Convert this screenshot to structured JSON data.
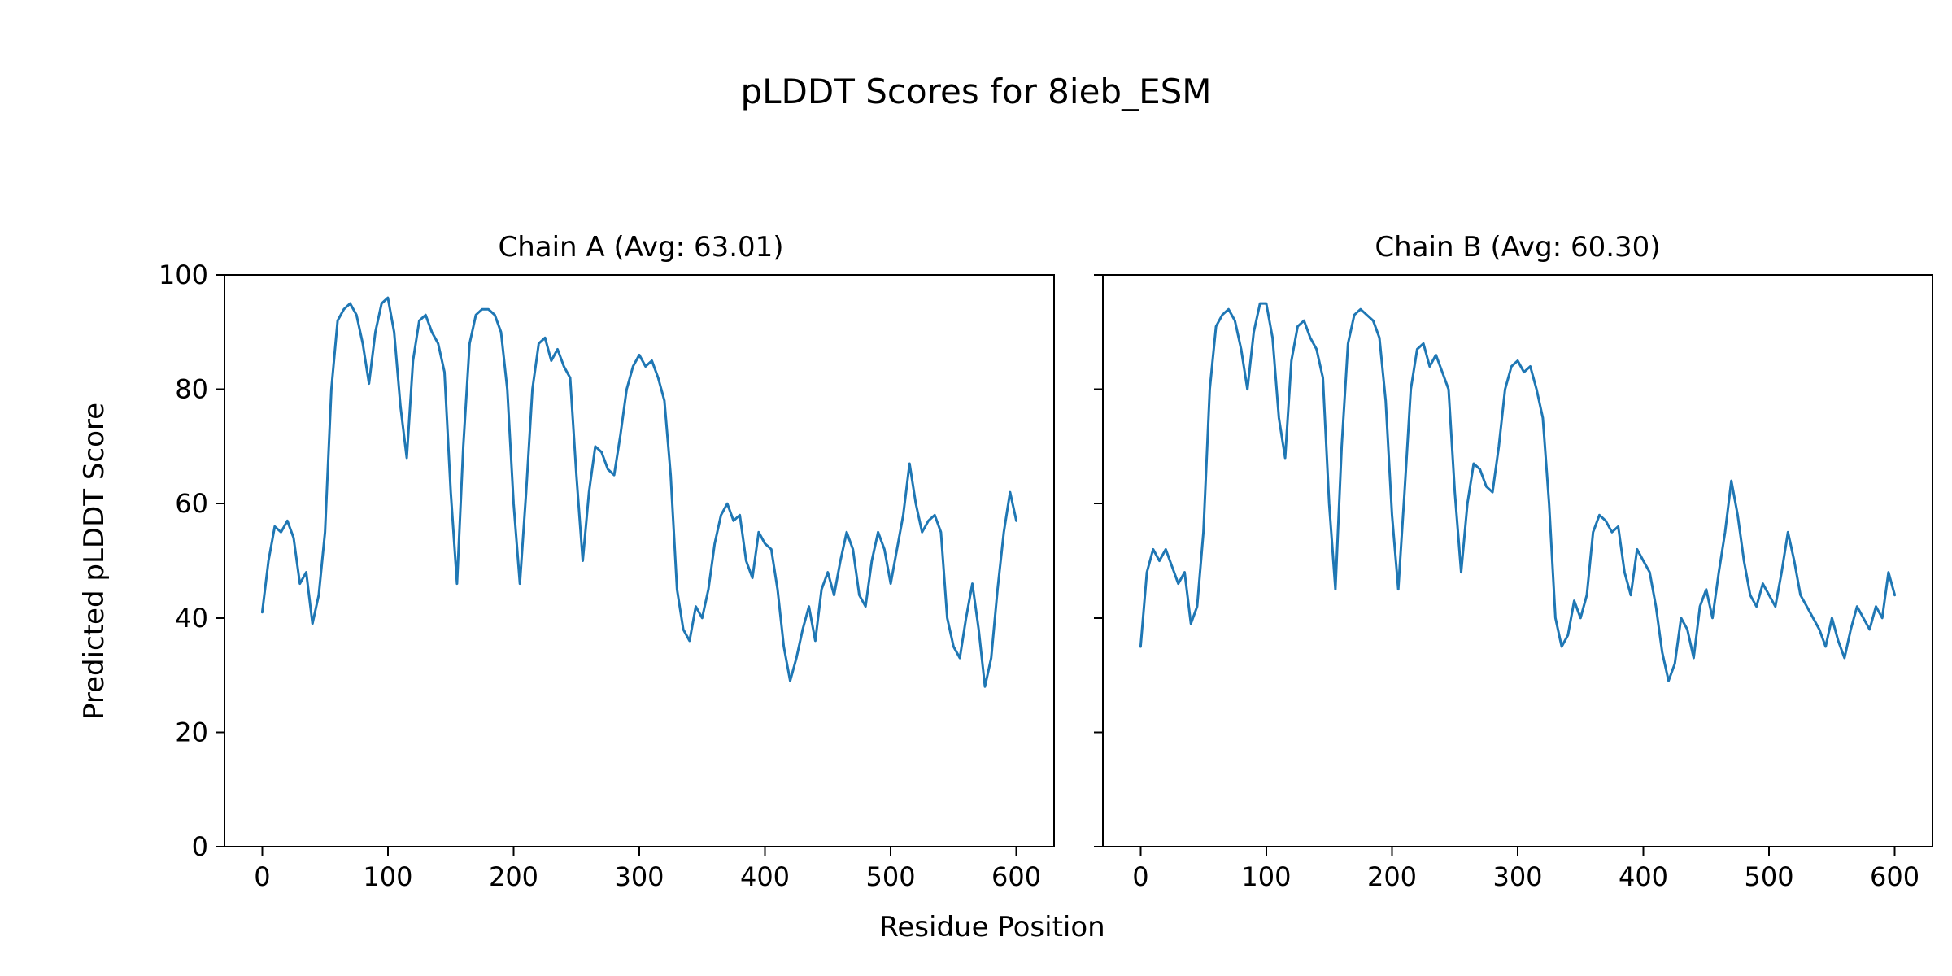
{
  "figure": {
    "title": "pLDDT Scores for 8ieb_ESM",
    "xlabel": "Residue Position",
    "ylabel": "Predicted pLDDT Score"
  },
  "chart_data": {
    "type": "line",
    "title": "pLDDT Scores for 8ieb_ESM",
    "xlabel": "Residue Position",
    "ylabel": "Predicted pLDDT Score",
    "line_color": "#1f77b4",
    "background_color": "#ffffff",
    "grid": false,
    "legend": "none",
    "subplots": [
      {
        "title": "Chain A (Avg: 63.01)",
        "avg": 63.01,
        "xlim": [
          -30,
          630
        ],
        "ylim": [
          0,
          100
        ],
        "xticks": [
          0,
          100,
          200,
          300,
          400,
          500,
          600
        ],
        "yticks": [
          0,
          20,
          40,
          60,
          80,
          100
        ],
        "show_ytick_labels": true,
        "x_start": 0,
        "x_step": 5,
        "values": [
          41,
          50,
          56,
          55,
          57,
          54,
          46,
          48,
          39,
          44,
          55,
          80,
          92,
          94,
          95,
          93,
          88,
          81,
          90,
          95,
          96,
          90,
          77,
          68,
          85,
          92,
          93,
          90,
          88,
          83,
          62,
          46,
          70,
          88,
          93,
          94,
          94,
          93,
          90,
          80,
          60,
          46,
          62,
          80,
          88,
          89,
          85,
          87,
          84,
          82,
          65,
          50,
          62,
          70,
          69,
          66,
          65,
          72,
          80,
          84,
          86,
          84,
          85,
          82,
          78,
          65,
          45,
          38,
          36,
          42,
          40,
          45,
          53,
          58,
          60,
          57,
          58,
          50,
          47,
          55,
          53,
          52,
          45,
          35,
          29,
          33,
          38,
          42,
          36,
          45,
          48,
          44,
          50,
          55,
          52,
          44,
          42,
          50,
          55,
          52,
          46,
          52,
          58,
          67,
          60,
          55,
          57,
          58,
          55,
          40,
          35,
          33,
          40,
          46,
          38,
          28,
          33,
          45,
          55,
          62,
          57
        ]
      },
      {
        "title": "Chain B (Avg: 60.30)",
        "avg": 60.3,
        "xlim": [
          -30,
          630
        ],
        "ylim": [
          0,
          100
        ],
        "xticks": [
          0,
          100,
          200,
          300,
          400,
          500,
          600
        ],
        "yticks": [
          0,
          20,
          40,
          60,
          80,
          100
        ],
        "show_ytick_labels": false,
        "x_start": 0,
        "x_step": 5,
        "values": [
          35,
          48,
          52,
          50,
          52,
          49,
          46,
          48,
          39,
          42,
          55,
          80,
          91,
          93,
          94,
          92,
          87,
          80,
          90,
          95,
          95,
          89,
          75,
          68,
          85,
          91,
          92,
          89,
          87,
          82,
          60,
          45,
          70,
          88,
          93,
          94,
          93,
          92,
          89,
          78,
          58,
          45,
          62,
          80,
          87,
          88,
          84,
          86,
          83,
          80,
          62,
          48,
          60,
          67,
          66,
          63,
          62,
          70,
          80,
          84,
          85,
          83,
          84,
          80,
          75,
          60,
          40,
          35,
          37,
          43,
          40,
          44,
          55,
          58,
          57,
          55,
          56,
          48,
          44,
          52,
          50,
          48,
          42,
          34,
          29,
          32,
          40,
          38,
          33,
          42,
          45,
          40,
          48,
          55,
          64,
          58,
          50,
          44,
          42,
          46,
          44,
          42,
          48,
          55,
          50,
          44,
          42,
          40,
          38,
          35,
          40,
          36,
          33,
          38,
          42,
          40,
          38,
          42,
          40,
          48,
          44
        ]
      }
    ]
  }
}
